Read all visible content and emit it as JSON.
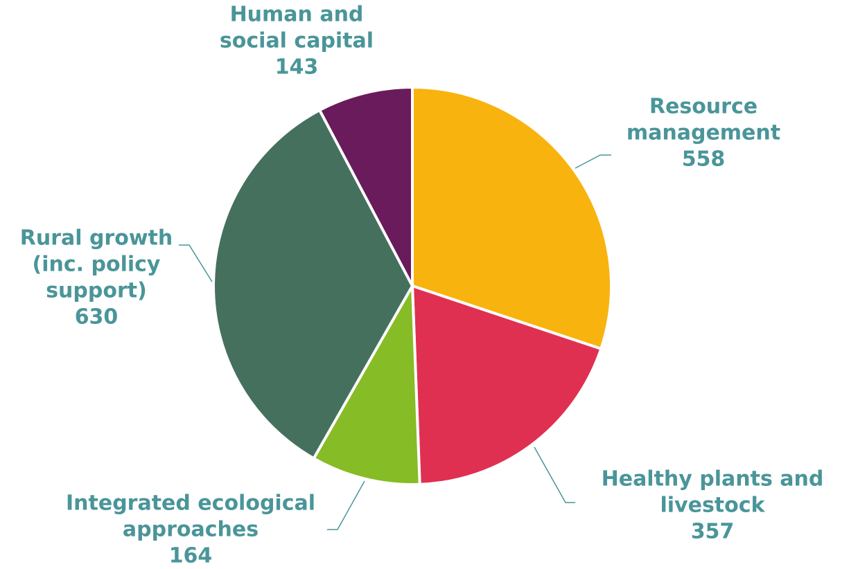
{
  "chart_data": {
    "type": "pie",
    "title": "",
    "slices": [
      {
        "label": [
          "Resource",
          "management"
        ],
        "value": 558,
        "value_text": "558",
        "color": "#F8B30F"
      },
      {
        "label": [
          "Healthy plants and",
          "livestock"
        ],
        "value": 357,
        "value_text": "357",
        "color": "#E03051"
      },
      {
        "label": [
          "Integrated ecological",
          "approaches"
        ],
        "value": 164,
        "value_text": "164",
        "color": "#86BC25"
      },
      {
        "label": [
          "Rural growth",
          "(inc. policy",
          "support)"
        ],
        "value": 630,
        "value_text": "630",
        "color": "#45705E"
      },
      {
        "label": [
          "Human and",
          "social capital"
        ],
        "value": 143,
        "value_text": "143",
        "color": "#6A1B5B"
      }
    ],
    "label_color": "#4A9599",
    "leader_color": "#4A9599",
    "slice_border_color": "#FFFFFF"
  }
}
